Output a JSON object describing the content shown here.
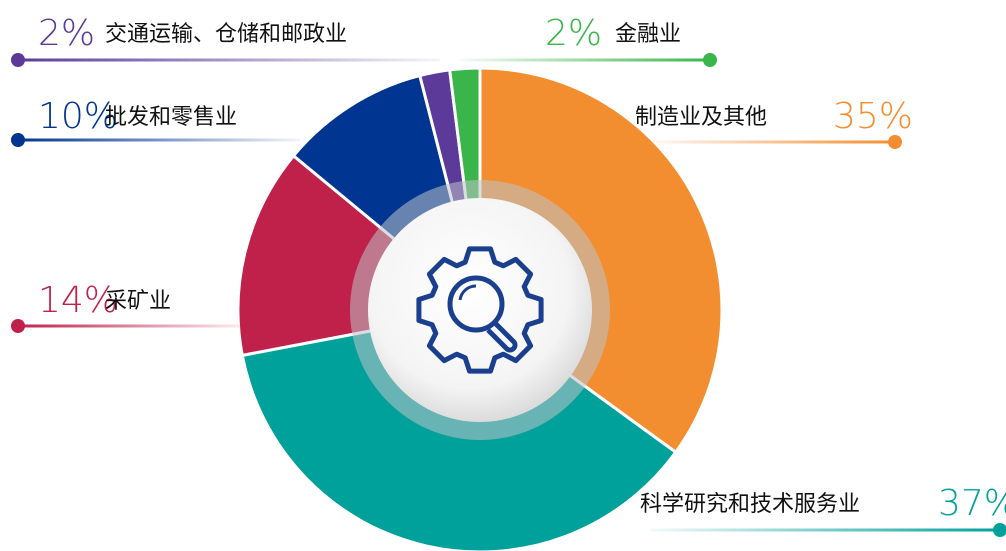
{
  "chart_data": {
    "type": "donut",
    "categories": [
      "制造业及其他",
      "科学研究和技术服务业",
      "采矿业",
      "批发和零售业",
      "交通运输、仓储和邮政业",
      "金融业"
    ],
    "values": [
      35,
      37,
      14,
      10,
      2,
      2
    ],
    "value_labels": [
      "35%",
      "37%",
      "14%",
      "10%",
      "2%",
      "2%"
    ],
    "colors": [
      "#f28e2f",
      "#00a19b",
      "#c0214a",
      "#003591",
      "#5b3a9a",
      "#3ab54a"
    ]
  }
}
